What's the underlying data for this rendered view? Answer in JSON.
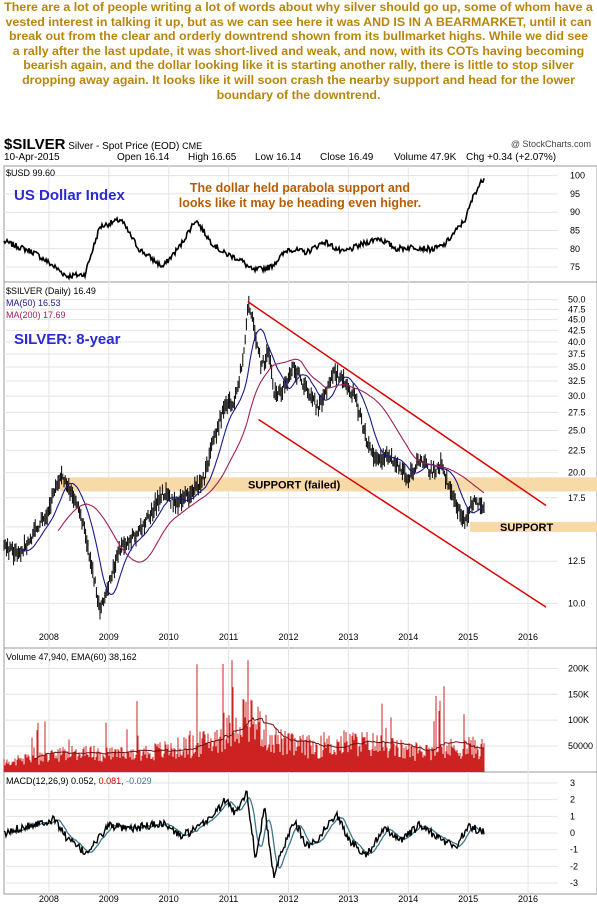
{
  "commentary": "There are a lot of people writing a lot of words about why silver should go up, some of whom have a vested interest in talking it up, but as we can see here it was AND IS IN A BEARMARKET, until it can break out from the clear and orderly downtrend shown from its bullmarket highs. While we did see a rally after the last update, it was short-lived and weak, and now, with its COTs having becoming bearish again, and the dollar looking like it is starting another rally, there is little to stop silver dropping away again. It looks like it will soon crash the nearby support and head for the lower boundary of the downtrend.",
  "header": {
    "symbol": "$SILVER",
    "description": "Silver - Spot Price (EOD)",
    "exchange": "CME",
    "date": "10-Apr-2015",
    "open": "Open 16.14",
    "high": "High 16.65",
    "low": "Low 16.14",
    "close": "Close 16.49",
    "volume": "Volume 47.9K",
    "change": "Chg +0.34 (+2.07%)",
    "watermark": "@ StockCharts.com"
  },
  "colors": {
    "commentary": "#b8860b",
    "title_blue": "#2b2bd0",
    "annotation": "#b85c00",
    "channel": "#dd0000",
    "ma50": "#1a1a8c",
    "ma200": "#a0205a",
    "support_band": "#f8d9a8",
    "volume": "#cc2222",
    "macd_signal": "#3a7a8a"
  },
  "chart_data": [
    {
      "type": "line",
      "panel": "dollar",
      "legend": "$USD 99.60",
      "title": "US Dollar Index",
      "annotation": "The dollar held parabola support and looks like it may be heading even higher.",
      "ylim": [
        72,
        101
      ],
      "yticks": [
        "100",
        "95",
        "90",
        "85",
        "80",
        "75"
      ],
      "x": [
        2007.25,
        2007.75,
        2008.1,
        2008.3,
        2008.6,
        2008.85,
        2009.2,
        2009.5,
        2009.9,
        2010.2,
        2010.45,
        2010.7,
        2010.9,
        2011.2,
        2011.4,
        2011.7,
        2012.0,
        2012.3,
        2012.6,
        2012.9,
        2013.2,
        2013.5,
        2013.8,
        2014.1,
        2014.4,
        2014.6,
        2014.8,
        2014.95,
        2015.1,
        2015.27
      ],
      "y": [
        82,
        79,
        75,
        72.5,
        73,
        86,
        88,
        80,
        75,
        81,
        88,
        82,
        79,
        77,
        74,
        75,
        80,
        79,
        82,
        79,
        81,
        83,
        80,
        80.5,
        79.8,
        81,
        85,
        88,
        95,
        99.6
      ]
    },
    {
      "type": "line",
      "panel": "silver",
      "title": "SILVER: 8-year",
      "legend": [
        "$SILVER (Daily) 16.49",
        "MA(50) 16.53",
        "MA(200) 17.69"
      ],
      "ylim": [
        8.5,
        51
      ],
      "log_scale": true,
      "yticks": [
        "50.0",
        "47.5",
        "45.0",
        "42.5",
        "40.0",
        "37.5",
        "35.0",
        "32.5",
        "30.0",
        "27.5",
        "25.0",
        "22.5",
        "20.0",
        "17.5",
        "15.0",
        "12.5",
        "10.0"
      ],
      "x_years": [
        "2008",
        "2009",
        "2010",
        "2011",
        "2012",
        "2013",
        "2014",
        "2015",
        "2016"
      ],
      "support_labels": [
        "SUPPORT (failed)",
        "SUPPORT"
      ],
      "x": [
        2007.25,
        2007.5,
        2007.75,
        2008.0,
        2008.2,
        2008.45,
        2008.65,
        2008.85,
        2008.95,
        2009.2,
        2009.5,
        2009.7,
        2009.9,
        2010.1,
        2010.4,
        2010.6,
        2010.8,
        2010.95,
        2011.1,
        2011.25,
        2011.32,
        2011.4,
        2011.55,
        2011.68,
        2011.75,
        2011.9,
        2012.1,
        2012.3,
        2012.5,
        2012.6,
        2012.75,
        2012.9,
        2013.1,
        2013.3,
        2013.5,
        2013.65,
        2013.8,
        2014.0,
        2014.2,
        2014.4,
        2014.55,
        2014.7,
        2014.85,
        2014.95,
        2015.1,
        2015.27
      ],
      "y": [
        13.5,
        13,
        14.5,
        16.5,
        19.5,
        17.5,
        13.5,
        9.5,
        10.5,
        13.5,
        14.5,
        16,
        18,
        17,
        18,
        19.5,
        25,
        29,
        29,
        37,
        48.5,
        45,
        35,
        38,
        30,
        31,
        35,
        31,
        28,
        30,
        34,
        33,
        30,
        24,
        21,
        22,
        21,
        19.5,
        21.5,
        20,
        21,
        18,
        16.5,
        15.5,
        17.5,
        16.49
      ]
    },
    {
      "type": "bar",
      "panel": "volume",
      "legend": "Volume 47,940, EMA(60) 38,162",
      "ylim": [
        0,
        220000
      ],
      "yticks": [
        "200K",
        "150K",
        "100K",
        "50000"
      ],
      "x": [
        2007.25,
        2008.0,
        2008.5,
        2009.0,
        2009.5,
        2010.0,
        2010.5,
        2011.0,
        2011.3,
        2011.7,
        2012.0,
        2012.5,
        2013.0,
        2013.5,
        2014.0,
        2014.5,
        2015.0,
        2015.27
      ],
      "y": [
        20000,
        30000,
        40000,
        35000,
        38000,
        45000,
        55000,
        80000,
        120000,
        70000,
        55000,
        50000,
        60000,
        55000,
        42000,
        45000,
        50000,
        47940
      ]
    },
    {
      "type": "line",
      "panel": "macd",
      "legend": [
        "MACD(12,26,9)",
        "0.052",
        "0.081",
        "-0.029"
      ],
      "ylim": [
        -3.3,
        3.3
      ],
      "yticks": [
        "3",
        "2",
        "1",
        "0",
        "-1",
        "-2",
        "-3"
      ],
      "x_years": [
        "2008",
        "2009",
        "2010",
        "2011",
        "2012",
        "2013",
        "2014",
        "2015",
        "2016"
      ],
      "x": [
        2007.25,
        2007.5,
        2007.8,
        2008.1,
        2008.3,
        2008.6,
        2008.8,
        2009.0,
        2009.3,
        2009.6,
        2009.9,
        2010.2,
        2010.5,
        2010.8,
        2010.95,
        2011.1,
        2011.3,
        2011.45,
        2011.6,
        2011.75,
        2011.9,
        2012.1,
        2012.3,
        2012.5,
        2012.8,
        2013.0,
        2013.3,
        2013.6,
        2013.9,
        2014.2,
        2014.5,
        2014.8,
        2015.0,
        2015.27
      ],
      "y": [
        -0.1,
        0.3,
        0.6,
        0.8,
        -0.3,
        -1.2,
        -0.5,
        0.5,
        0.2,
        0.4,
        0.6,
        -0.2,
        0.3,
        1.3,
        2.0,
        1.2,
        2.5,
        -1.5,
        1.5,
        -2.6,
        -1.0,
        0.8,
        -0.8,
        -0.3,
        1.2,
        -0.4,
        -1.3,
        0.2,
        -0.4,
        0.5,
        -0.3,
        -0.8,
        0.4,
        0.05
      ]
    }
  ]
}
